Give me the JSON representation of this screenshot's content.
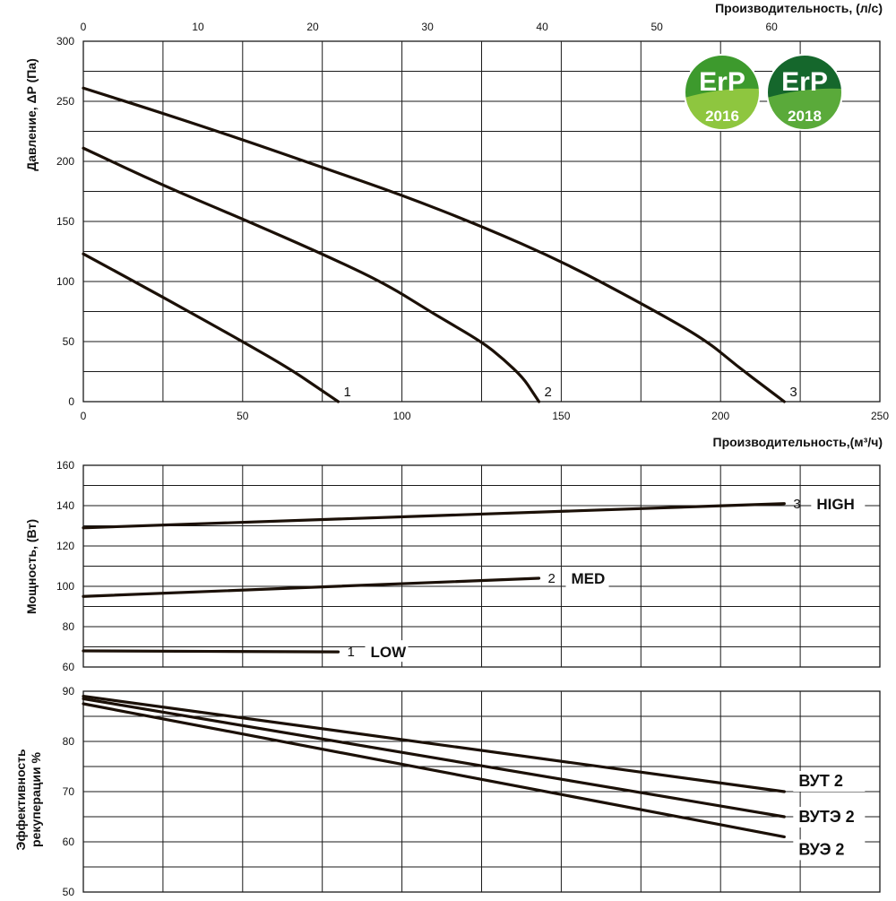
{
  "colors": {
    "curve": "#1b1007",
    "grid": "#1a1a1a",
    "badge_2016_dark": "#3d9a2d",
    "badge_2016_light": "#8ec63f",
    "badge_2018_dark": "#15672c",
    "badge_2018_light": "#5aaa3a"
  },
  "badges": [
    {
      "name": "erp-2016-badge",
      "top": "ErP",
      "year": "2016"
    },
    {
      "name": "erp-2018-badge",
      "top": "ErP",
      "year": "2018"
    }
  ],
  "chart_data": [
    {
      "type": "line",
      "xlabel": "Производительность,(м³/ч)",
      "x2label": "Производительность, (л/с)",
      "ylabel": "Давление, ΔP (Па)",
      "xlim": [
        0,
        250
      ],
      "x2lim": [
        0,
        69.44
      ],
      "ylim": [
        0,
        300
      ],
      "xticks": [
        0,
        50,
        100,
        150,
        200,
        250
      ],
      "x2ticks": [
        0,
        10,
        20,
        30,
        40,
        50,
        60
      ],
      "yticks": [
        0,
        50,
        100,
        150,
        200,
        250,
        300
      ],
      "grid": true,
      "series": [
        {
          "name": "1",
          "x": [
            0,
            25,
            50,
            65,
            75,
            80
          ],
          "y": [
            123,
            87,
            50,
            27,
            9,
            0
          ]
        },
        {
          "name": "2",
          "x": [
            0,
            25,
            50,
            75,
            95,
            110,
            125,
            132,
            138,
            141,
            143
          ],
          "y": [
            211,
            180,
            152,
            123,
            98,
            73,
            50,
            35,
            20,
            8,
            0
          ]
        },
        {
          "name": "3",
          "x": [
            0,
            25,
            50,
            75,
            100,
            125,
            150,
            175,
            195,
            205,
            215,
            220
          ],
          "y": [
            261,
            240,
            218,
            195,
            172,
            146,
            117,
            82,
            52,
            30,
            10,
            0
          ]
        }
      ]
    },
    {
      "type": "line",
      "ylabel": "Мощность, (Вт)",
      "xlim": [
        0,
        250
      ],
      "ylim": [
        60,
        160
      ],
      "yticks": [
        60,
        80,
        100,
        120,
        140,
        160
      ],
      "grid": true,
      "series": [
        {
          "name": "1",
          "label": "LOW",
          "x": [
            0,
            80
          ],
          "y": [
            68,
            67.5
          ]
        },
        {
          "name": "2",
          "label": "MED",
          "x": [
            0,
            143
          ],
          "y": [
            95,
            104
          ]
        },
        {
          "name": "3",
          "label": "HIGH",
          "x": [
            0,
            220
          ],
          "y": [
            129,
            141
          ]
        }
      ]
    },
    {
      "type": "line",
      "ylabel": "Эффективность рекуперации %",
      "xlim": [
        0,
        250
      ],
      "ylim": [
        50,
        90
      ],
      "yticks": [
        50,
        60,
        70,
        80,
        90
      ],
      "grid": true,
      "series": [
        {
          "name": "ВУТ 2",
          "x": [
            0,
            220
          ],
          "y": [
            89,
            70
          ]
        },
        {
          "name": "ВУТЭ 2",
          "x": [
            0,
            220
          ],
          "y": [
            88.5,
            65
          ]
        },
        {
          "name": "ВУЭ 2",
          "x": [
            0,
            220
          ],
          "y": [
            87.5,
            61
          ]
        }
      ]
    }
  ]
}
